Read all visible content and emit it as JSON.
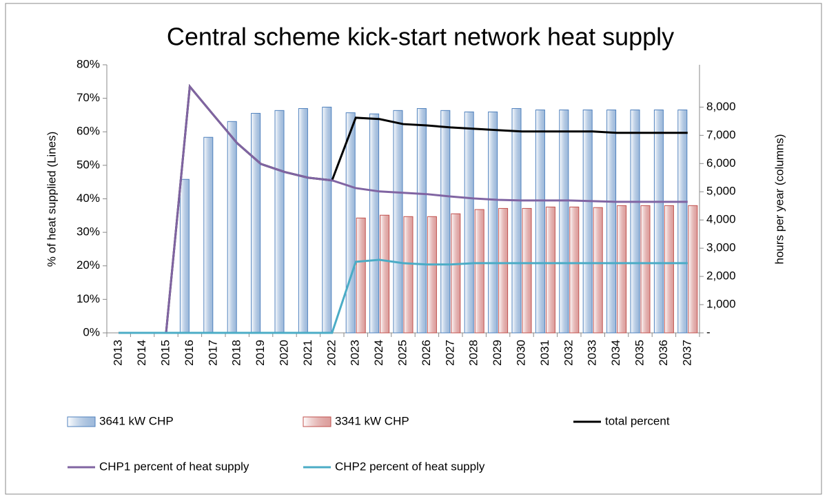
{
  "chart_data": {
    "type": "combo",
    "title": "Central scheme kick-start network heat supply",
    "y_label": "% of heat supplied (Lines)",
    "y2_label": "hours per year (columns)",
    "categories": [
      "2013",
      "2014",
      "2015",
      "2016",
      "2017",
      "2018",
      "2019",
      "2020",
      "2021",
      "2022",
      "2023",
      "2024",
      "2025",
      "2026",
      "2027",
      "2028",
      "2029",
      "2030",
      "2031",
      "2032",
      "2033",
      "2034",
      "2035",
      "2036",
      "2037"
    ],
    "ylim": [
      0,
      80
    ],
    "yticks": [
      {
        "value": 0,
        "label": "0%"
      },
      {
        "value": 10,
        "label": "10%"
      },
      {
        "value": 20,
        "label": "20%"
      },
      {
        "value": 30,
        "label": "30%"
      },
      {
        "value": 40,
        "label": "40%"
      },
      {
        "value": 50,
        "label": "50%"
      },
      {
        "value": 60,
        "label": "60%"
      },
      {
        "value": 70,
        "label": "70%"
      },
      {
        "value": 80,
        "label": "80%"
      }
    ],
    "y2lim": [
      0,
      9500
    ],
    "y2ticks": [
      {
        "value": 0,
        "label": "-"
      },
      {
        "value": 1000,
        "label": "1,000"
      },
      {
        "value": 2000,
        "label": "2,000"
      },
      {
        "value": 3000,
        "label": "3,000"
      },
      {
        "value": 4000,
        "label": "4,000"
      },
      {
        "value": 5000,
        "label": "5,000"
      },
      {
        "value": 6000,
        "label": "6,000"
      },
      {
        "value": 7000,
        "label": "7,000"
      },
      {
        "value": 8000,
        "label": "8,000"
      }
    ],
    "series": [
      {
        "name": "3641 kW CHP",
        "kind": "bar",
        "axis": "y2",
        "color": "#4f81bd",
        "values": [
          0,
          0,
          0,
          5440,
          6930,
          7490,
          7780,
          7880,
          7950,
          8000,
          7800,
          7760,
          7880,
          7950,
          7880,
          7830,
          7830,
          7950,
          7900,
          7900,
          7900,
          7900,
          7900,
          7900,
          7900
        ]
      },
      {
        "name": "3341 kW CHP",
        "kind": "bar",
        "axis": "y2",
        "color": "#c0504d",
        "values": [
          0,
          0,
          0,
          0,
          0,
          0,
          0,
          0,
          0,
          0,
          4070,
          4170,
          4120,
          4120,
          4220,
          4370,
          4410,
          4410,
          4460,
          4460,
          4440,
          4510,
          4510,
          4510,
          4510
        ]
      },
      {
        "name": "total percent",
        "kind": "line",
        "color": "#000000",
        "values": [
          0,
          0,
          0,
          73.5,
          65,
          56.6,
          50.4,
          48,
          46.3,
          45.5,
          64.2,
          63.8,
          62.3,
          61.9,
          61.3,
          60.9,
          60.5,
          60.1,
          60.1,
          60.1,
          60.1,
          59.7,
          59.7,
          59.7,
          59.7
        ]
      },
      {
        "name": "CHP1 percent of heat supply",
        "kind": "line",
        "color": "#8064a2",
        "values": [
          0,
          0,
          0,
          73.5,
          65,
          56.6,
          50.4,
          48,
          46.3,
          45.5,
          43.2,
          42.2,
          41.8,
          41.4,
          40.7,
          40.1,
          39.7,
          39.5,
          39.5,
          39.5,
          39.3,
          39.1,
          39.1,
          39.1,
          39.1
        ]
      },
      {
        "name": "CHP2 percent of heat supply",
        "kind": "line",
        "color": "#4bacc6",
        "values": [
          0,
          0,
          0,
          0,
          0,
          0,
          0,
          0,
          0,
          0,
          21.2,
          21.8,
          20.8,
          20.4,
          20.4,
          20.8,
          20.8,
          20.8,
          20.8,
          20.8,
          20.8,
          20.8,
          20.8,
          20.8,
          20.8
        ]
      }
    ]
  }
}
